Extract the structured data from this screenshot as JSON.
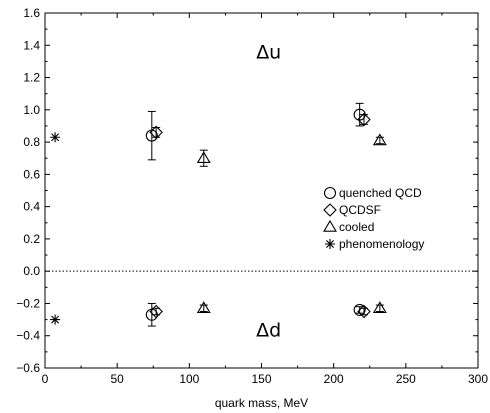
{
  "chart_data": {
    "type": "scatter",
    "title": "",
    "xlabel": "quark mass, MeV",
    "ylabel": "",
    "xlim": [
      0,
      300
    ],
    "ylim": [
      -0.6,
      1.6
    ],
    "xticks": [
      0,
      50,
      100,
      150,
      200,
      250,
      300
    ],
    "yticks": [
      -0.6,
      -0.4,
      -0.2,
      0.0,
      0.2,
      0.4,
      0.6,
      0.8,
      1.0,
      1.2,
      1.4,
      1.6
    ],
    "ytick_labels": [
      "−0.6",
      "−0.4",
      "−0.2",
      "0.0",
      "0.2",
      "0.4",
      "0.6",
      "0.8",
      "1.0",
      "1.2",
      "1.4",
      "1.6"
    ],
    "grid": false,
    "legend_position": "right",
    "reference_line": {
      "y": 0.0,
      "style": "dotted"
    },
    "annotations": [
      {
        "text": "Δu",
        "x": 155,
        "y": 1.36
      },
      {
        "text": "Δd",
        "x": 155,
        "y": -0.36
      }
    ],
    "series": [
      {
        "name": "quenched QCD",
        "marker": "circle",
        "points": [
          {
            "x": 74,
            "y": 0.84,
            "yerr": 0.15
          },
          {
            "x": 218,
            "y": 0.97,
            "yerr": 0.07
          },
          {
            "x": 74,
            "y": -0.27,
            "yerr": 0.07
          },
          {
            "x": 218,
            "y": -0.24,
            "yerr": 0.02
          }
        ]
      },
      {
        "name": "QCDSF",
        "marker": "diamond",
        "points": [
          {
            "x": 77,
            "y": 0.86,
            "yerr": 0.03
          },
          {
            "x": 221,
            "y": 0.94,
            "yerr": 0.03
          },
          {
            "x": 77,
            "y": -0.25,
            "yerr": 0.02
          },
          {
            "x": 221,
            "y": -0.25,
            "yerr": 0.02
          }
        ]
      },
      {
        "name": "cooled",
        "marker": "triangle",
        "points": [
          {
            "x": 110,
            "y": 0.7,
            "yerr": 0.05
          },
          {
            "x": 232,
            "y": 0.81,
            "yerr": 0.02
          },
          {
            "x": 110,
            "y": -0.23,
            "yerr": 0.02
          },
          {
            "x": 232,
            "y": -0.23,
            "yerr": 0.02
          }
        ]
      },
      {
        "name": "phenomenology",
        "marker": "asterisk",
        "points": [
          {
            "x": 7,
            "y": 0.83,
            "yerr": 0
          },
          {
            "x": 7,
            "y": -0.3,
            "yerr": 0
          }
        ]
      }
    ]
  }
}
